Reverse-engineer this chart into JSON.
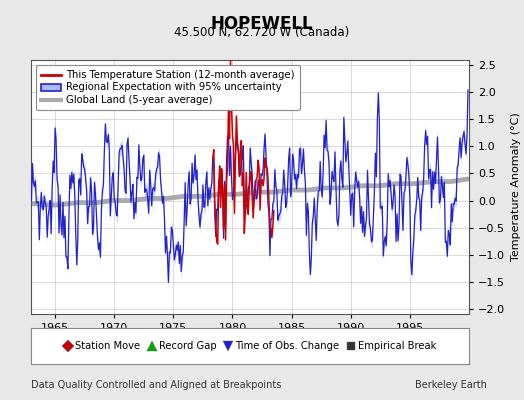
{
  "title": "HOPEWELL",
  "subtitle": "45.500 N, 62.720 W (Canada)",
  "ylabel": "Temperature Anomaly (°C)",
  "xlabel_note": "Data Quality Controlled and Aligned at Breakpoints",
  "credit": "Berkeley Earth",
  "xlim": [
    1963.0,
    2000.0
  ],
  "ylim": [
    -2.1,
    2.6
  ],
  "yticks": [
    -2,
    -1.5,
    -1,
    -0.5,
    0,
    0.5,
    1,
    1.5,
    2,
    2.5
  ],
  "xticks": [
    1965,
    1970,
    1975,
    1980,
    1985,
    1990,
    1995
  ],
  "bg_color": "#e8e8e8",
  "plot_bg_color": "#ffffff",
  "station_color": "#cc0000",
  "regional_color": "#2222cc",
  "regional_fill_color": "#aabbff",
  "global_color": "#aaaaaa",
  "legend_items": [
    {
      "label": "This Temperature Station (12-month average)",
      "color": "#cc0000",
      "lw": 2
    },
    {
      "label": "Regional Expectation with 95% uncertainty",
      "color": "#2222cc",
      "lw": 1.5
    },
    {
      "label": "Global Land (5-year average)",
      "color": "#aaaaaa",
      "lw": 3
    }
  ],
  "marker_legend": [
    {
      "marker": "D",
      "color": "#cc0000",
      "label": "Station Move"
    },
    {
      "marker": "^",
      "color": "#00aa00",
      "label": "Record Gap"
    },
    {
      "marker": "v",
      "color": "#2222cc",
      "label": "Time of Obs. Change"
    },
    {
      "marker": "s",
      "color": "#333333",
      "label": "Empirical Break"
    }
  ],
  "station_start": 1978.25,
  "station_end": 1983.5,
  "regional_uncertainty": 0.12
}
